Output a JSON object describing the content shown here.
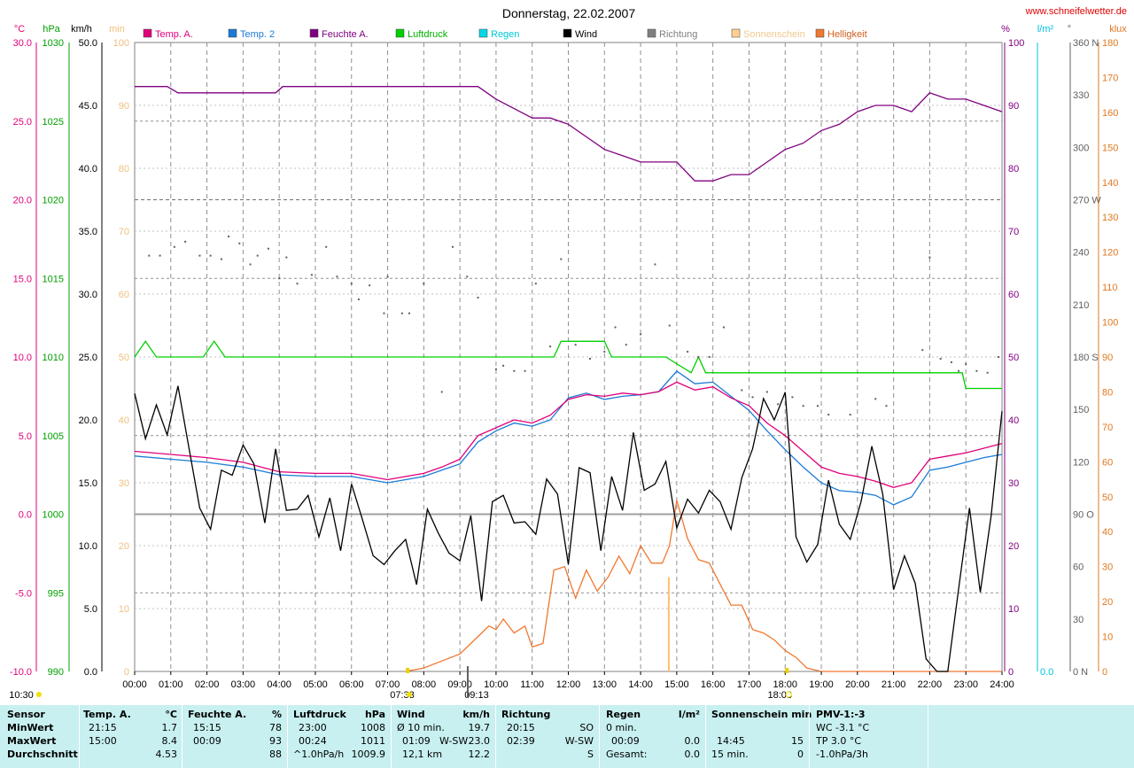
{
  "title": "Donnerstag, 22.02.2007",
  "site": "www.schneifelwetter.de",
  "colors": {
    "temp_a": "#e0007a",
    "temp_2": "#1a7ad6",
    "feuchte": "#800080",
    "luftdruck": "#00d000",
    "regen": "#00d8e8",
    "wind": "#000000",
    "richtung": "#606060",
    "sonne": "#ffc882",
    "hell": "#f07830",
    "axis_c": "#e0007a",
    "axis_hpa": "#00a000",
    "axis_min": "#f0c080",
    "axis_pct": "#800080",
    "axis_regen": "#00c0e0",
    "axis_klux": "#e07820"
  },
  "legend": [
    {
      "label": "Temp. A.",
      "color": "#e0007a"
    },
    {
      "label": "Temp. 2",
      "color": "#1a7ad6"
    },
    {
      "label": "Feuchte A.",
      "color": "#800080"
    },
    {
      "label": "Luftdruck",
      "color": "#00d000"
    },
    {
      "label": "Regen",
      "color": "#00d8e8"
    },
    {
      "label": "Wind",
      "color": "#000000"
    },
    {
      "label": "Richtung",
      "color": "#808080"
    },
    {
      "label": "Sonnenschein",
      "color": "#ffd090"
    },
    {
      "label": "Helligkeit",
      "color": "#f07830"
    }
  ],
  "axis_units": {
    "c": "°C",
    "hpa": "hPa",
    "kmh": "km/h",
    "min": "min",
    "pct": "%",
    "regen": "l/m²",
    "deg": "°",
    "klux": "klux"
  },
  "chart_data": {
    "type": "line",
    "x_ticks": [
      "00:00",
      "01:00",
      "02:00",
      "03:00",
      "04:00",
      "05:00",
      "06:00",
      "07:00",
      "08:00",
      "09:00",
      "10:00",
      "11:00",
      "12:00",
      "13:00",
      "14:00",
      "15:00",
      "16:00",
      "17:00",
      "18:00",
      "19:00",
      "20:00",
      "21:00",
      "22:00",
      "23:00",
      "24:00"
    ],
    "axes": {
      "temp_c": [
        "30.0",
        "25.0",
        "20.0",
        "15.0",
        "10.0",
        "5.0",
        "0.0",
        "-5.0",
        "-10.0"
      ],
      "pressure_hpa": [
        "1030",
        "1025",
        "1020",
        "1015",
        "1010",
        "1005",
        "1000",
        "995",
        "990"
      ],
      "wind_kmh": [
        "50.0",
        "45.0",
        "40.0",
        "35.0",
        "30.0",
        "25.0",
        "20.0",
        "15.0",
        "10.0",
        "5.0",
        "0.0"
      ],
      "sun_min": [
        "100",
        "90",
        "80",
        "70",
        "60",
        "50",
        "40",
        "30",
        "20",
        "10",
        "0"
      ],
      "humidity_pct": [
        "100",
        "90",
        "80",
        "70",
        "60",
        "50",
        "40",
        "30",
        "20",
        "10",
        "0"
      ],
      "rain_lm2": [
        "0.0"
      ],
      "direction_deg": [
        "360 N",
        "330",
        "300",
        "270 W",
        "240",
        "210",
        "180 S",
        "150",
        "120",
        "90 O",
        "60",
        "30",
        "0 N"
      ],
      "light_klux": [
        "180",
        "170",
        "160",
        "150",
        "140",
        "130",
        "120",
        "110",
        "100",
        "90",
        "80",
        "70",
        "60",
        "50",
        "40",
        "30",
        "20",
        "10",
        "0"
      ]
    },
    "ylim_kmh": [
      0,
      50
    ],
    "grid": true,
    "series": [
      {
        "name": "Temp. A.",
        "unit": "°C",
        "x": [
          0,
          1,
          2,
          3,
          4,
          5,
          6,
          7,
          7.5,
          8,
          8.5,
          9,
          9.5,
          10,
          10.5,
          11,
          11.5,
          12,
          12.5,
          13,
          13.5,
          14,
          14.5,
          15,
          15.5,
          16,
          16.5,
          17,
          17.5,
          18,
          18.5,
          19,
          19.5,
          20,
          20.5,
          21,
          21.5,
          22,
          22.5,
          23,
          23.5,
          24
        ],
        "y": [
          4.0,
          3.8,
          3.6,
          3.3,
          2.7,
          2.6,
          2.6,
          2.2,
          2.4,
          2.6,
          3.0,
          3.5,
          5.0,
          5.5,
          6.0,
          5.8,
          6.3,
          7.3,
          7.6,
          7.5,
          7.7,
          7.6,
          7.8,
          8.4,
          7.9,
          8.1,
          7.4,
          6.9,
          5.8,
          5.0,
          4.0,
          3.0,
          2.6,
          2.4,
          2.1,
          1.7,
          2.0,
          3.5,
          3.7,
          3.9,
          4.2,
          4.5
        ]
      },
      {
        "name": "Temp. 2",
        "unit": "°C",
        "x": [
          0,
          1,
          2,
          3,
          4,
          5,
          6,
          7,
          7.5,
          8,
          8.5,
          9,
          9.5,
          10,
          10.5,
          11,
          11.5,
          12,
          12.5,
          13,
          13.5,
          14,
          14.5,
          15,
          15.5,
          16,
          16.5,
          17,
          17.5,
          18,
          18.5,
          19,
          19.5,
          20,
          20.5,
          21,
          21.5,
          22,
          22.5,
          23,
          23.5,
          24
        ],
        "y": [
          3.7,
          3.5,
          3.3,
          3.0,
          2.5,
          2.4,
          2.4,
          2.0,
          2.2,
          2.4,
          2.8,
          3.2,
          4.6,
          5.3,
          5.8,
          5.6,
          6.0,
          7.4,
          7.7,
          7.3,
          7.5,
          7.6,
          7.8,
          9.1,
          8.3,
          8.4,
          7.5,
          6.6,
          5.3,
          4.1,
          3.0,
          2.0,
          1.5,
          1.4,
          1.2,
          0.6,
          1.1,
          2.8,
          3.0,
          3.3,
          3.6,
          3.8
        ]
      },
      {
        "name": "Feuchte A.",
        "unit": "%",
        "x": [
          0,
          0.9,
          1.2,
          3.9,
          4.1,
          9.5,
          10,
          11,
          11.5,
          12,
          12.5,
          13,
          13.5,
          14,
          14.5,
          15,
          15.5,
          16,
          16.5,
          17,
          17.5,
          18,
          18.5,
          19,
          19.5,
          20,
          20.5,
          21,
          21.5,
          22,
          22.5,
          23,
          23.5,
          24
        ],
        "y": [
          93,
          93,
          92,
          92,
          93,
          93,
          91,
          88,
          88,
          87,
          85,
          83,
          82,
          81,
          81,
          81,
          78,
          78,
          79,
          79,
          81,
          83,
          84,
          86,
          87,
          89,
          90,
          90,
          89,
          92,
          91,
          91,
          90,
          89
        ]
      },
      {
        "name": "Luftdruck",
        "unit": "hPa",
        "x": [
          0,
          0.3,
          0.6,
          1.9,
          2.2,
          2.5,
          11.6,
          11.8,
          13.0,
          13.2,
          14.7,
          15.4,
          15.6,
          15.8,
          16.0,
          22.9,
          23.0,
          24
        ],
        "y": [
          1010,
          1011,
          1010,
          1010,
          1011,
          1010,
          1010,
          1011,
          1011,
          1010,
          1010,
          1009,
          1010,
          1009,
          1009,
          1009,
          1008,
          1008
        ]
      },
      {
        "name": "Wind",
        "unit": "km/h",
        "x": [
          0,
          0.3,
          0.6,
          0.9,
          1.2,
          1.5,
          1.8,
          2.1,
          2.4,
          2.7,
          3.0,
          3.3,
          3.6,
          3.9,
          4.2,
          4.5,
          4.8,
          5.1,
          5.4,
          5.7,
          6.0,
          6.3,
          6.6,
          6.9,
          7.2,
          7.5,
          7.8,
          8.1,
          8.4,
          8.7,
          9.0,
          9.3,
          9.6,
          9.9,
          10.2,
          10.5,
          10.8,
          11.1,
          11.4,
          11.7,
          12.0,
          12.3,
          12.6,
          12.9,
          13.2,
          13.5,
          13.8,
          14.1,
          14.4,
          14.7,
          15.0,
          15.3,
          15.6,
          15.9,
          16.2,
          16.5,
          16.8,
          17.1,
          17.4,
          17.7,
          18.0,
          18.3,
          18.6,
          18.9,
          19.2,
          19.5,
          19.8,
          20.1,
          20.4,
          20.7,
          21.0,
          21.3,
          21.6,
          21.9,
          22.2,
          22.5,
          22.8,
          23.1,
          23.4,
          23.7,
          24.0
        ],
        "y": [
          22.1,
          18.5,
          21.2,
          18.8,
          22.7,
          17.8,
          13.0,
          11.3,
          16.0,
          15.6,
          18.0,
          16.5,
          11.8,
          17.7,
          12.8,
          12.9,
          14.0,
          10.7,
          13.8,
          9.6,
          14.9,
          12.1,
          9.2,
          8.5,
          9.6,
          10.5,
          6.9,
          12.9,
          11.0,
          9.4,
          8.8,
          12.4,
          5.6,
          13.5,
          14.0,
          11.8,
          11.9,
          10.9,
          15.3,
          14.1,
          8.5,
          16.2,
          15.8,
          9.6,
          15.5,
          12.8,
          19.0,
          14.4,
          14.9,
          16.7,
          11.4,
          13.7,
          12.6,
          14.4,
          13.5,
          11.3,
          15.4,
          17.7,
          21.7,
          20.0,
          22.2,
          10.7,
          8.7,
          10.1,
          15.2,
          11.7,
          10.5,
          13.5,
          17.9,
          14.1,
          6.5,
          9.2,
          7.0,
          1.0,
          0,
          0,
          6.6,
          13.0,
          6.3,
          12.4,
          20.7
        ]
      },
      {
        "name": "Helligkeit",
        "unit": "klux",
        "x": [
          7.5,
          8.0,
          8.5,
          9.0,
          9.2,
          9.5,
          9.8,
          10.0,
          10.2,
          10.5,
          10.8,
          11.0,
          11.3,
          11.6,
          11.9,
          12.2,
          12.5,
          12.8,
          13.1,
          13.4,
          13.7,
          14.0,
          14.3,
          14.6,
          14.8,
          15.0,
          15.3,
          15.6,
          15.9,
          16.2,
          16.5,
          16.8,
          17.1,
          17.4,
          17.7,
          18.0,
          18.3,
          18.6,
          19.0,
          24.0
        ],
        "y": [
          0,
          1,
          3,
          5,
          7,
          10,
          13,
          12,
          15,
          11,
          13,
          7,
          8,
          29,
          30,
          21,
          29,
          23,
          27,
          33,
          28,
          36,
          31,
          31,
          36,
          49,
          38,
          32,
          31,
          25,
          19,
          19,
          12,
          11,
          9,
          6,
          4,
          1,
          0,
          0
        ]
      }
    ],
    "markers": {
      "sunrise": "07:33",
      "sunset": "18:03",
      "max_temp_time": "09:13",
      "bottom_left_time": "10:30"
    }
  },
  "stats": {
    "sensor": {
      "header": "Sensor",
      "rows": [
        "MinWert",
        "MaxWert",
        "Durchschnitt"
      ]
    },
    "temp": {
      "header": "Temp. A.",
      "unit": "°C",
      "rows": [
        [
          "21:15",
          "1.7"
        ],
        [
          "15:00",
          "8.4"
        ],
        [
          "",
          "4.53"
        ]
      ]
    },
    "feuchte": {
      "header": "Feuchte A.",
      "unit": "%",
      "rows": [
        [
          "15:15",
          "78"
        ],
        [
          "00:09",
          "93"
        ],
        [
          "",
          "88"
        ]
      ]
    },
    "druck": {
      "header": "Luftdruck",
      "unit": "hPa",
      "rows": [
        [
          "23:00",
          "1008"
        ],
        [
          "00:24",
          "1011"
        ],
        [
          "^1.0hPa/h",
          "1009.9"
        ]
      ]
    },
    "wind": {
      "header": "Wind",
      "unit": "km/h",
      "rows": [
        [
          "Ø 10 min.",
          "",
          "19.7"
        ],
        [
          "01:09",
          "W-SW",
          "23.0"
        ],
        [
          "12,1 km",
          "",
          "12.2"
        ]
      ]
    },
    "richtung": {
      "header": "Richtung",
      "rows": [
        [
          "20:15",
          "SO"
        ],
        [
          "02:39",
          "W-SW"
        ],
        [
          "",
          "S"
        ]
      ]
    },
    "regen": {
      "header": "Regen",
      "unit": "l/m²",
      "rows": [
        [
          "0 min.",
          ""
        ],
        [
          "00:09",
          "0.0"
        ],
        [
          "Gesamt:",
          "0.0"
        ]
      ]
    },
    "sonne": {
      "header": "Sonnenschein min",
      "rows": [
        [
          "",
          ""
        ],
        [
          "14:45",
          "15"
        ],
        [
          "15 min.",
          "0"
        ]
      ]
    },
    "pmv": {
      "header": "PMV-1:-3",
      "rows": [
        "WC -3.1 °C",
        "TP 3.0 °C",
        "-1.0hPa/3h"
      ]
    }
  }
}
